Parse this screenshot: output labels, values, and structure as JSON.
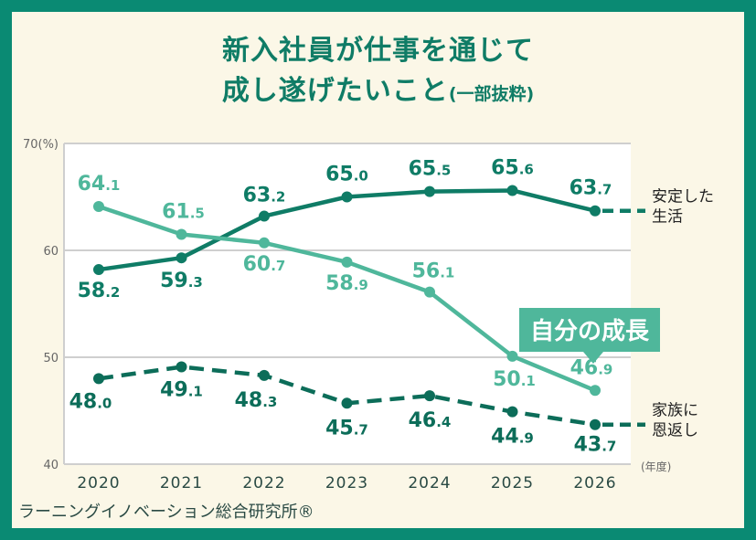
{
  "title_line1": "新入社員が仕事を通じて",
  "title_line2_main": "成し遂げたいこと",
  "title_line2_sub": "(一部抜粋)",
  "credit": "ラーニングイノベーション総合研究所®",
  "callout": "自分の成長",
  "chart_data": {
    "type": "line",
    "categories": [
      "2020",
      "2021",
      "2022",
      "2023",
      "2024",
      "2025",
      "2026"
    ],
    "x_unit": "(年度)",
    "y_unit": "(%)",
    "ylim": [
      40,
      70
    ],
    "yticks": [
      40,
      50,
      60,
      70
    ],
    "ytick_labels": [
      "40",
      "50",
      "60",
      "70(%)"
    ],
    "grid": true,
    "series": [
      {
        "name": "安定した生活",
        "name_lines": [
          "安定した",
          "生活"
        ],
        "values": [
          58.2,
          59.3,
          63.2,
          65.0,
          65.5,
          65.6,
          63.7
        ],
        "labels": [
          "58.2",
          "59.3",
          "63.2",
          "65.0",
          "65.5",
          "65.6",
          "63.7"
        ],
        "color": "#0f7c66",
        "dashed": false
      },
      {
        "name": "自分の成長",
        "name_lines": [],
        "values": [
          64.1,
          61.5,
          60.7,
          58.9,
          56.1,
          50.1,
          46.9
        ],
        "labels": [
          "64.1",
          "61.5",
          "60.7",
          "58.9",
          "56.1",
          "50.1",
          "46.9"
        ],
        "color": "#4fb79b",
        "dashed": false
      },
      {
        "name": "家族に恩返し",
        "name_lines": [
          "家族に",
          "恩返し"
        ],
        "values": [
          48.0,
          49.1,
          48.3,
          45.7,
          46.4,
          44.9,
          43.7
        ],
        "labels": [
          "48.0",
          "49.1",
          "48.3",
          "45.7",
          "46.4",
          "44.9",
          "43.7"
        ],
        "color": "#0c6d59",
        "dashed": true
      }
    ]
  }
}
